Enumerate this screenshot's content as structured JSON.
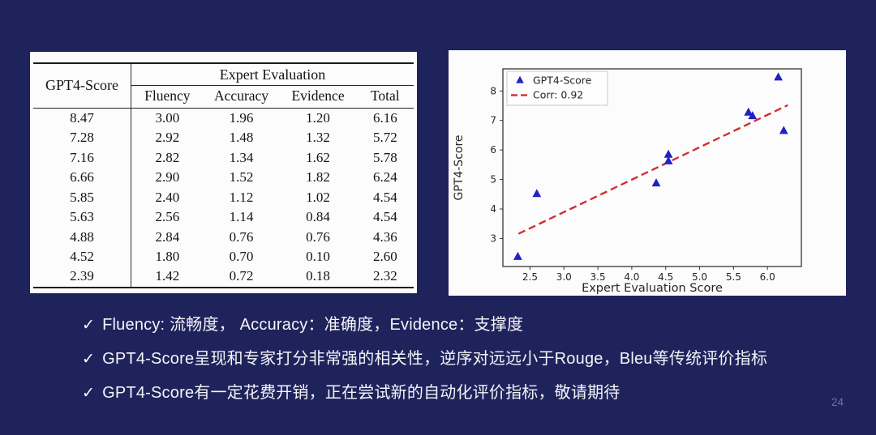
{
  "slide": {
    "page_number": "24",
    "background_color": "#1f235c",
    "panel_color": "#fcfcfd",
    "check_glyph": "✓"
  },
  "table": {
    "col1_header": "GPT4-Score",
    "group_header": "Expert Evaluation",
    "sub_headers": [
      "Fluency",
      "Accuracy",
      "Evidence",
      "Total"
    ],
    "rows": [
      [
        "8.47",
        "3.00",
        "1.96",
        "1.20",
        "6.16"
      ],
      [
        "7.28",
        "2.92",
        "1.48",
        "1.32",
        "5.72"
      ],
      [
        "7.16",
        "2.82",
        "1.34",
        "1.62",
        "5.78"
      ],
      [
        "6.66",
        "2.90",
        "1.52",
        "1.82",
        "6.24"
      ],
      [
        "5.85",
        "2.40",
        "1.12",
        "1.02",
        "4.54"
      ],
      [
        "5.63",
        "2.56",
        "1.14",
        "0.84",
        "4.54"
      ],
      [
        "4.88",
        "2.84",
        "0.76",
        "0.76",
        "4.36"
      ],
      [
        "4.52",
        "1.80",
        "0.70",
        "0.10",
        "2.60"
      ],
      [
        "2.39",
        "1.42",
        "0.72",
        "0.18",
        "2.32"
      ]
    ]
  },
  "bullets": [
    {
      "marker": "✓",
      "text": "Fluency: 流畅度， Accuracy：准确度，Evidence：支撑度"
    },
    {
      "marker": "✓",
      "text": "GPT4-Score呈现和专家打分非常强的相关性，逆序对远远小于Rouge，Bleu等传统评价指标"
    },
    {
      "marker": "✓",
      "text": "GPT4-Score有一定花费开销，正在尝试新的自动化评价指标，敬请期待"
    }
  ],
  "chart_data": {
    "type": "scatter",
    "title": "",
    "xlabel": "Expert Evaluation Score",
    "ylabel": "GPT4-Score",
    "xlim": [
      2.1,
      6.5
    ],
    "ylim": [
      2.05,
      8.75
    ],
    "xticks": [
      2.5,
      3.0,
      3.5,
      4.0,
      4.5,
      5.0,
      5.5,
      6.0
    ],
    "yticks": [
      3,
      4,
      5,
      6,
      7,
      8
    ],
    "grid": false,
    "legend_position": "upper-left",
    "legend": [
      "GPT4-Score",
      "Corr: 0.92"
    ],
    "points": [
      [
        6.16,
        8.47
      ],
      [
        5.72,
        7.28
      ],
      [
        5.78,
        7.16
      ],
      [
        6.24,
        6.66
      ],
      [
        4.54,
        5.85
      ],
      [
        4.54,
        5.63
      ],
      [
        4.36,
        4.88
      ],
      [
        2.6,
        4.52
      ],
      [
        2.32,
        2.39
      ]
    ],
    "fit_line": [
      [
        2.33,
        3.16
      ],
      [
        6.3,
        7.52
      ]
    ],
    "correlation": 0.92,
    "marker_color": "#2121c4",
    "line_color": "#d12f2f"
  }
}
